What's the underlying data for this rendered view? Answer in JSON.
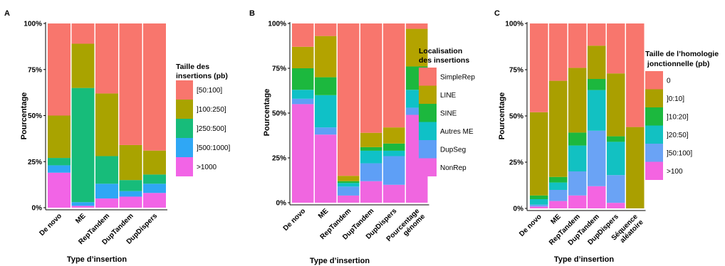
{
  "chart_data": [
    {
      "panel": "A",
      "type": "bar",
      "stacked": true,
      "title": "",
      "xlabel": "Type d’insertion",
      "ylabel": "Pourcentage",
      "ylim": [
        0,
        1
      ],
      "yticks": [
        "0%",
        "25%",
        "50%",
        "75%",
        "100%"
      ],
      "categories": [
        "De novo",
        "ME",
        "RepTandem",
        "DupTandem",
        "DupDispers"
      ],
      "legend_title": [
        "Taille des",
        "insertions (pb)"
      ],
      "legend_position": "right",
      "series": [
        {
          "name": ">1000",
          "color": "#F264E6",
          "values": [
            0.19,
            0.01,
            0.05,
            0.06,
            0.08
          ]
        },
        {
          "name": "]500:1000]",
          "color": "#2FA7F5",
          "values": [
            0.04,
            0.02,
            0.08,
            0.03,
            0.05
          ]
        },
        {
          "name": "]250:500]",
          "color": "#17BC7A",
          "values": [
            0.04,
            0.62,
            0.15,
            0.06,
            0.05
          ]
        },
        {
          "name": "]100:250]",
          "color": "#A9A300",
          "values": [
            0.23,
            0.24,
            0.34,
            0.19,
            0.13
          ]
        },
        {
          "name": "[50:100]",
          "color": "#F8766D",
          "values": [
            0.5,
            0.11,
            0.38,
            0.66,
            0.69
          ]
        }
      ]
    },
    {
      "panel": "B",
      "type": "bar",
      "stacked": true,
      "title": "",
      "xlabel": "Type d’insertion",
      "ylabel": "Pourcentage",
      "ylim": [
        0,
        1
      ],
      "yticks": [
        "0%",
        "25%",
        "50%",
        "75%",
        "100%"
      ],
      "categories": [
        "De novo",
        "ME",
        "RepTandem",
        "DupTandem",
        "DupDispers",
        "Pourcentage génome"
      ],
      "legend_title": [
        "Localisation",
        "des insertions"
      ],
      "legend_position": "right",
      "series": [
        {
          "name": "NonRep",
          "color": "#F066E0",
          "values": [
            0.55,
            0.38,
            0.04,
            0.12,
            0.1,
            0.49
          ]
        },
        {
          "name": "DupSeg",
          "color": "#5E9FF6",
          "values": [
            0.03,
            0.04,
            0.05,
            0.1,
            0.16,
            0.04
          ]
        },
        {
          "name": "Autres ME",
          "color": "#0FC1C7",
          "values": [
            0.05,
            0.18,
            0.02,
            0.07,
            0.03,
            0.1
          ]
        },
        {
          "name": "SINE",
          "color": "#1CB83E",
          "values": [
            0.12,
            0.1,
            0.01,
            0.02,
            0.04,
            0.13
          ]
        },
        {
          "name": "LINE",
          "color": "#B3A300",
          "values": [
            0.12,
            0.23,
            0.03,
            0.08,
            0.09,
            0.21
          ]
        },
        {
          "name": "SimpleRep",
          "color": "#F8766D",
          "values": [
            0.13,
            0.07,
            0.85,
            0.61,
            0.58,
            0.03
          ]
        }
      ]
    },
    {
      "panel": "C",
      "type": "bar",
      "stacked": true,
      "title": "",
      "xlabel": "Type d’insertion",
      "ylabel": "Pourcentage",
      "ylim": [
        0,
        1
      ],
      "yticks": [
        "0%",
        "25%",
        "50%",
        "75%",
        "100%"
      ],
      "categories": [
        "De novo",
        "ME",
        "RepTandem",
        "DupTandem",
        "DupDispers",
        "Séquence aléatoire"
      ],
      "legend_title": [
        "Taille de l’homologie",
        " jonctionnelle (pb)"
      ],
      "legend_position": "right",
      "series": [
        {
          "name": ">100",
          "color": "#F464E1",
          "values": [
            0.01,
            0.04,
            0.07,
            0.12,
            0.03,
            0.0
          ]
        },
        {
          "name": "]50:100]",
          "color": "#6AA3F5",
          "values": [
            0.01,
            0.06,
            0.13,
            0.3,
            0.15,
            0.0
          ]
        },
        {
          "name": "]20:50]",
          "color": "#12C1C2",
          "values": [
            0.03,
            0.04,
            0.14,
            0.22,
            0.18,
            0.0
          ]
        },
        {
          "name": "]10:20]",
          "color": "#1CB83E",
          "values": [
            0.02,
            0.03,
            0.07,
            0.06,
            0.03,
            0.0
          ]
        },
        {
          "name": "]0:10]",
          "color": "#AA9F00",
          "values": [
            0.45,
            0.52,
            0.35,
            0.18,
            0.34,
            0.44
          ]
        },
        {
          "name": "0",
          "color": "#F8766D",
          "values": [
            0.48,
            0.31,
            0.24,
            0.12,
            0.27,
            0.56
          ]
        }
      ]
    }
  ]
}
